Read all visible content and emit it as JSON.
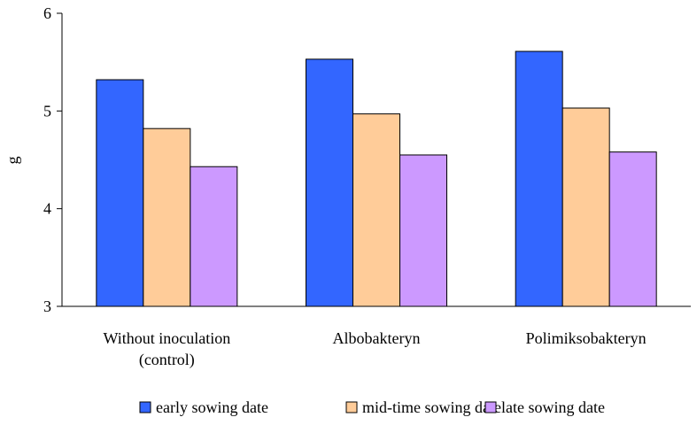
{
  "chart_data": {
    "type": "bar",
    "title": "",
    "xlabel": "",
    "ylabel": "g",
    "ylim": [
      3,
      6
    ],
    "yticks": [
      "3",
      "4",
      "5",
      "6"
    ],
    "categories": [
      [
        "Without inoculation",
        "(control)"
      ],
      [
        "Albobakteryn"
      ],
      [
        "Polimiksobakteryn"
      ]
    ],
    "series": [
      {
        "name": "early sowing date",
        "color": "#3366ff",
        "values": [
          5.32,
          5.53,
          5.61
        ]
      },
      {
        "name": "mid-time sowing date",
        "color": "#ffcc99",
        "values": [
          4.82,
          4.97,
          5.03
        ]
      },
      {
        "name": "late sowing date",
        "color": "#cc99ff",
        "values": [
          4.43,
          4.55,
          4.58
        ]
      }
    ],
    "legend_position": "bottom",
    "grid": false
  }
}
